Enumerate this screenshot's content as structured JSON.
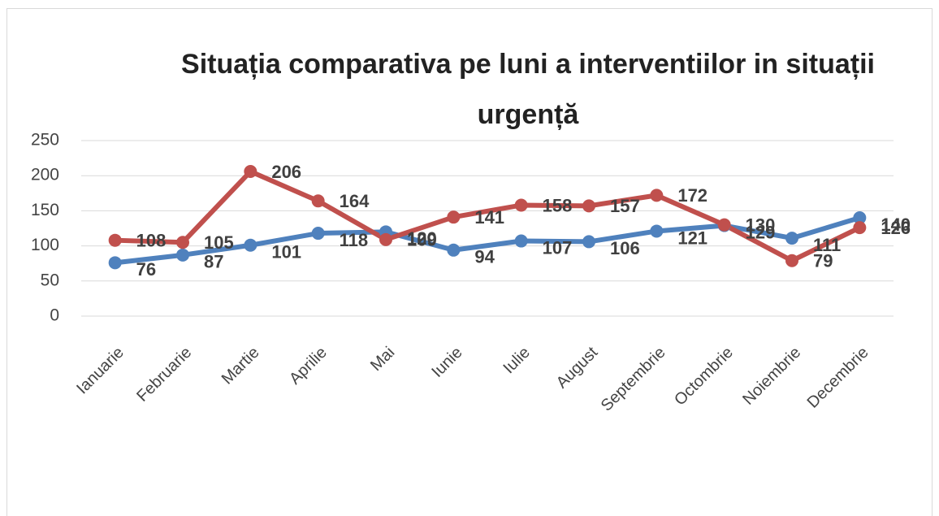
{
  "chart_data": {
    "type": "line",
    "title": "Situația comparativa pe luni a interventiilor in situații urgență",
    "categories": [
      "Ianuarie",
      "Februarie",
      "Martie",
      "Aprilie",
      "Mai",
      "Iunie",
      "Iulie",
      "August",
      "Septembrie",
      "Octombrie",
      "Noiembrie",
      "Decembrie"
    ],
    "series": [
      {
        "color": "#4f81bd",
        "values": [
          76,
          87,
          101,
          118,
          120,
          94,
          107,
          106,
          121,
          129,
          111,
          140
        ]
      },
      {
        "color": "#c0504d",
        "values": [
          108,
          105,
          206,
          164,
          109,
          141,
          158,
          157,
          172,
          130,
          79,
          126
        ]
      }
    ],
    "ylim": [
      0,
      250
    ],
    "yticks": [
      0,
      50,
      100,
      150,
      200,
      250
    ],
    "grid": true
  }
}
